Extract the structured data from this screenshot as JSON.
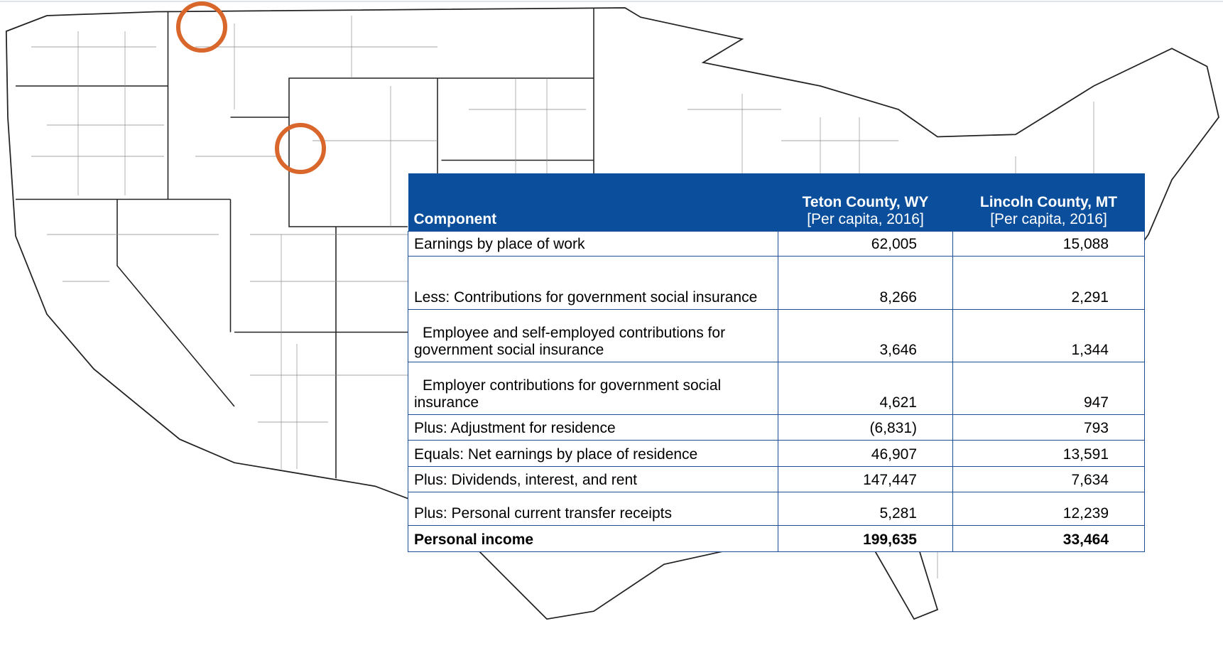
{
  "table": {
    "header": {
      "component": "Component",
      "columns": [
        {
          "title": "Teton County, WY",
          "subtitle": "[Per capita, 2016]"
        },
        {
          "title": "Lincoln County, MT",
          "subtitle": "[Per capita, 2016]"
        }
      ]
    },
    "rows": [
      [
        "Earnings by place of work",
        "62,005",
        "15,088"
      ],
      [
        "Less: Contributions for government social insurance",
        "8,266",
        "2,291"
      ],
      [
        "Employee and self-employed contributions for government social insurance",
        "3,646",
        "1,344"
      ],
      [
        "Employer contributions for government social insurance",
        "4,621",
        "947"
      ],
      [
        "Plus: Adjustment for residence",
        "(6,831)",
        "793"
      ],
      [
        "Equals: Net earnings by place of residence",
        "46,907",
        "13,591"
      ],
      [
        "Plus: Dividends, interest, and rent",
        "147,447",
        "7,634"
      ],
      [
        "Plus: Personal current transfer receipts",
        "5,281",
        "12,239"
      ],
      [
        "Personal income",
        "199,635",
        "33,464"
      ]
    ]
  }
}
